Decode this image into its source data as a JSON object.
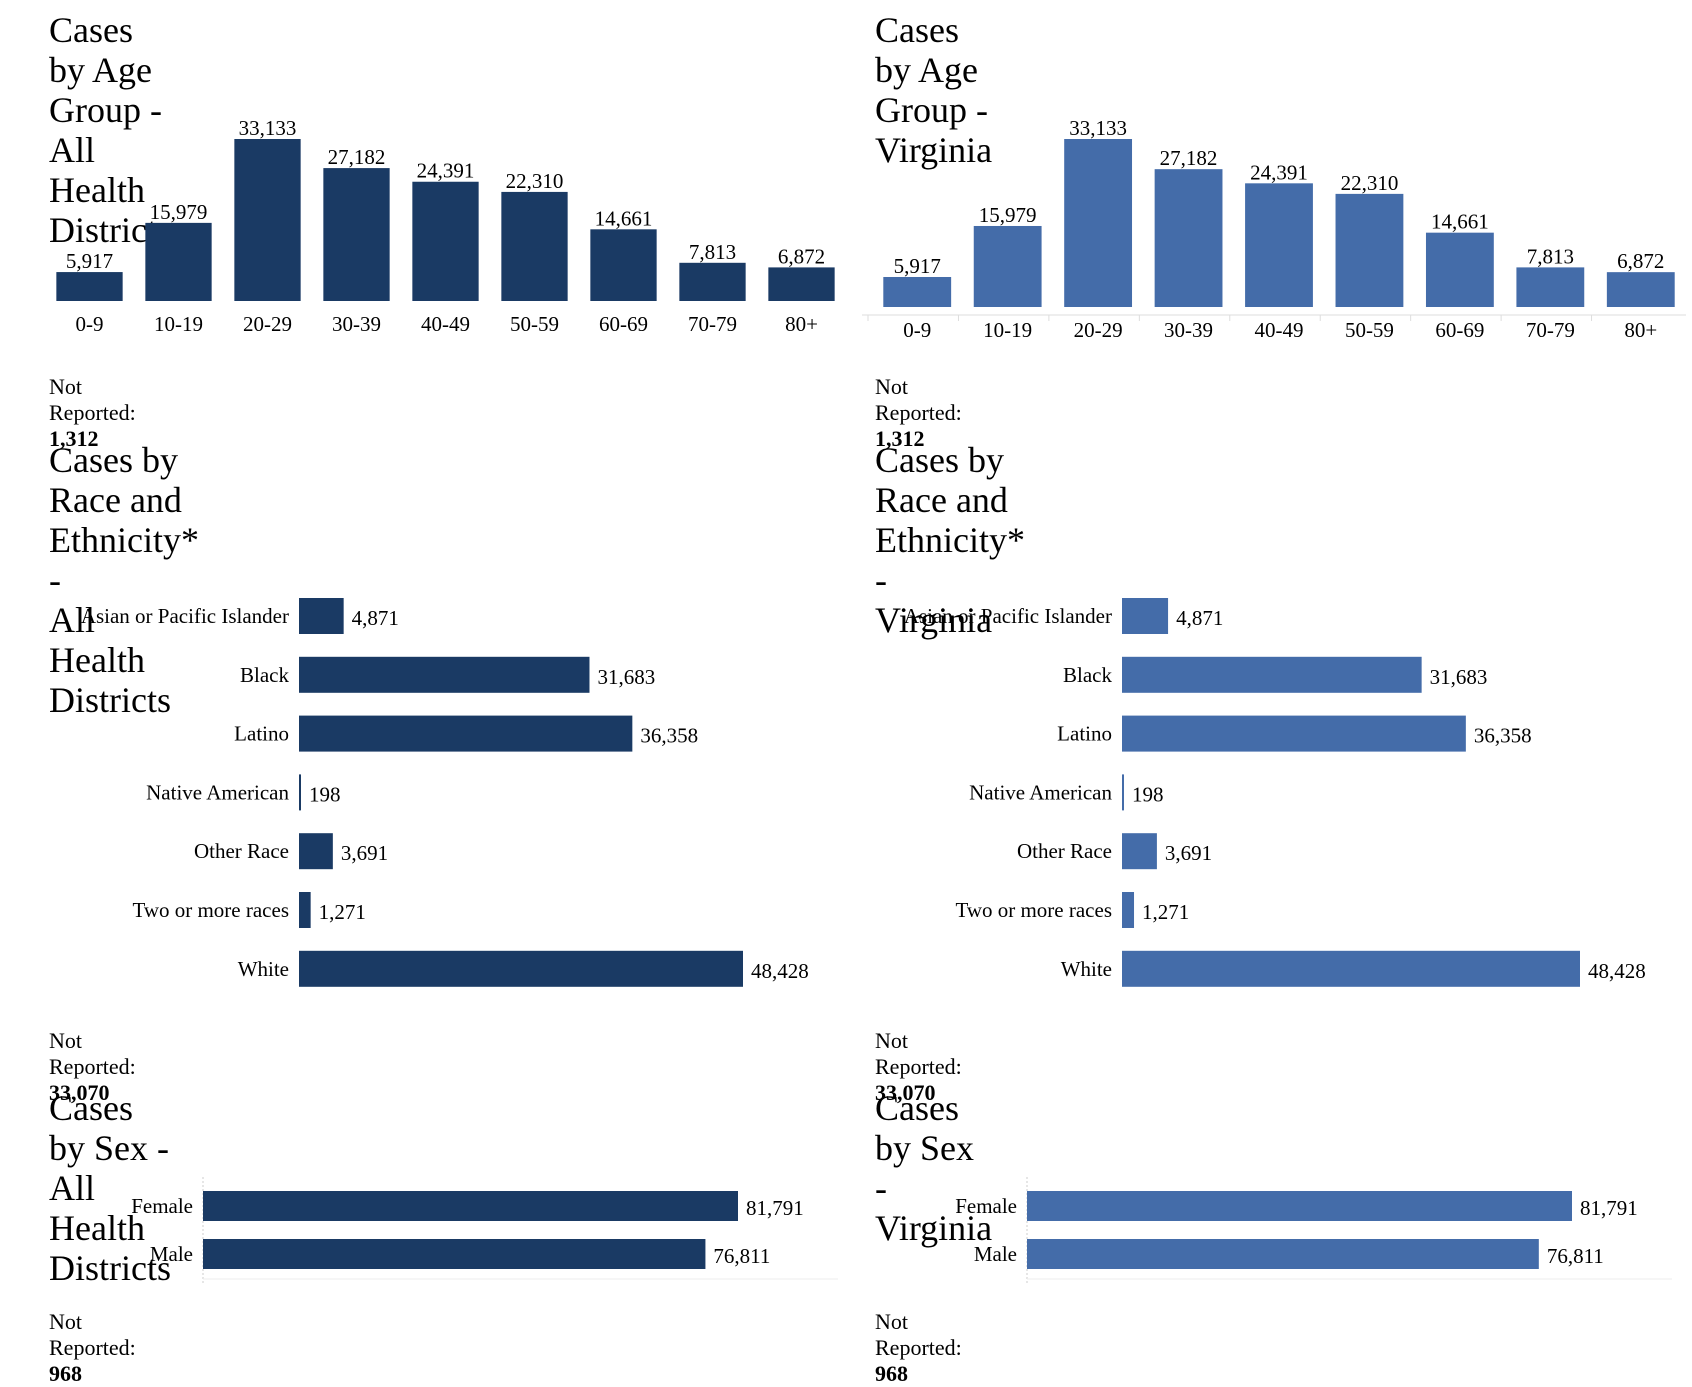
{
  "colors": {
    "dark": "#1a3a64",
    "light": "#446ca9",
    "axis": "#dddddd"
  },
  "not_reported_label": "Not Reported:",
  "chart_data": [
    {
      "id": "age-all",
      "type": "bar",
      "title": "Cases by Age Group - All Health Districts",
      "categories": [
        "0-9",
        "10-19",
        "20-29",
        "30-39",
        "40-49",
        "50-59",
        "60-69",
        "70-79",
        "80+"
      ],
      "values": [
        5917,
        15979,
        33133,
        27182,
        24391,
        22310,
        14661,
        7813,
        6872
      ],
      "labels": [
        "5,917",
        "15,979",
        "33,133",
        "27,182",
        "24,391",
        "22,310",
        "14,661",
        "7,813",
        "6,872"
      ],
      "xlabel": "",
      "ylabel": "",
      "ylim": [
        0,
        33133
      ],
      "grid": false,
      "legend": "none",
      "color": "dark",
      "not_reported": "1,312"
    },
    {
      "id": "age-va",
      "type": "bar",
      "title": "Cases by Age Group - Virginia",
      "categories": [
        "0-9",
        "10-19",
        "20-29",
        "30-39",
        "40-49",
        "50-59",
        "60-69",
        "70-79",
        "80+"
      ],
      "values": [
        5917,
        15979,
        33133,
        27182,
        24391,
        22310,
        14661,
        7813,
        6872
      ],
      "labels": [
        "5,917",
        "15,979",
        "33,133",
        "27,182",
        "24,391",
        "22,310",
        "14,661",
        "7,813",
        "6,872"
      ],
      "xlabel": "",
      "ylabel": "",
      "ylim": [
        0,
        33133
      ],
      "grid": false,
      "legend": "none",
      "color": "light",
      "not_reported": "1,312"
    },
    {
      "id": "race-all",
      "type": "bar",
      "orientation": "horizontal",
      "title": "Cases by Race and Ethnicity* -\nAll Health Districts",
      "categories": [
        "Asian or Pacific Islander",
        "Black",
        "Latino",
        "Native American",
        "Other Race",
        "Two or more races",
        "White"
      ],
      "values": [
        4871,
        31683,
        36358,
        198,
        3691,
        1271,
        48428
      ],
      "labels": [
        "4,871",
        "31,683",
        "36,358",
        "198",
        "3,691",
        "1,271",
        "48,428"
      ],
      "xlim": [
        0,
        48428
      ],
      "grid": false,
      "legend": "none",
      "color": "dark",
      "not_reported": "33,070"
    },
    {
      "id": "race-va",
      "type": "bar",
      "orientation": "horizontal",
      "title": "Cases by Race and Ethnicity* -\nVirginia",
      "categories": [
        "Asian or Pacific Islander",
        "Black",
        "Latino",
        "Native American",
        "Other Race",
        "Two or more races",
        "White"
      ],
      "values": [
        4871,
        31683,
        36358,
        198,
        3691,
        1271,
        48428
      ],
      "labels": [
        "4,871",
        "31,683",
        "36,358",
        "198",
        "3,691",
        "1,271",
        "48,428"
      ],
      "xlim": [
        0,
        48428
      ],
      "grid": false,
      "legend": "none",
      "color": "light",
      "not_reported": "33,070"
    },
    {
      "id": "sex-all",
      "type": "bar",
      "orientation": "horizontal",
      "title": "Cases by Sex - All Health Districts",
      "categories": [
        "Female",
        "Male"
      ],
      "values": [
        81791,
        76811
      ],
      "labels": [
        "81,791",
        "76,811"
      ],
      "xlim": [
        0,
        81791
      ],
      "grid": false,
      "legend": "none",
      "color": "dark",
      "not_reported": "968"
    },
    {
      "id": "sex-va",
      "type": "bar",
      "orientation": "horizontal",
      "title": "Cases by Sex - Virginia",
      "categories": [
        "Female",
        "Male"
      ],
      "values": [
        81791,
        76811
      ],
      "labels": [
        "81,791",
        "76,811"
      ],
      "xlim": [
        0,
        81791
      ],
      "grid": false,
      "legend": "none",
      "color": "light",
      "not_reported": "968"
    }
  ]
}
